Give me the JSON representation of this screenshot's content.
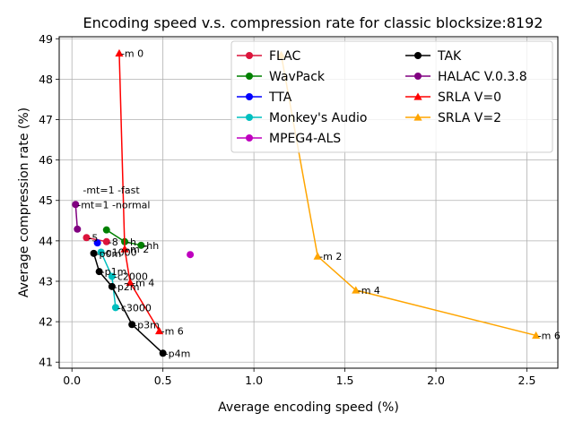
{
  "chart_data": {
    "type": "scatter",
    "title": "Encoding speed v.s. compression rate for classic blocksize:8192",
    "xlabel": "Average encoding speed (%)",
    "ylabel": "Average compression rate (%)",
    "xlim": [
      -0.07,
      2.67
    ],
    "ylim": [
      40.85,
      49.05
    ],
    "xticks": [
      0.0,
      0.5,
      1.0,
      1.5,
      2.0,
      2.5
    ],
    "xtick_labels": [
      "0.0",
      "0.5",
      "1.0",
      "1.5",
      "2.0",
      "2.5"
    ],
    "yticks": [
      41,
      42,
      43,
      44,
      45,
      46,
      47,
      48,
      49
    ],
    "ytick_labels": [
      "41",
      "42",
      "43",
      "44",
      "45",
      "46",
      "47",
      "48",
      "49"
    ],
    "grid": true,
    "legend_position": "top-right",
    "series": [
      {
        "name": "FLAC",
        "color": "#dc143c",
        "marker": "circle",
        "points": [
          {
            "x": 0.08,
            "y": 44.08,
            "label": "-5"
          },
          {
            "x": 0.19,
            "y": 43.98,
            "label": "-8"
          }
        ]
      },
      {
        "name": "WavPack",
        "color": "#008000",
        "marker": "circle",
        "points": [
          {
            "x": 0.19,
            "y": 44.27,
            "label": ""
          },
          {
            "x": 0.29,
            "y": 43.98,
            "label": "-h"
          },
          {
            "x": 0.38,
            "y": 43.89,
            "label": "-hh"
          }
        ]
      },
      {
        "name": "TTA",
        "color": "#0000ff",
        "marker": "circle",
        "points": [
          {
            "x": 0.14,
            "y": 43.95,
            "label": ""
          }
        ]
      },
      {
        "name": "Monkey's Audio",
        "color": "#00bfbf",
        "marker": "circle",
        "points": [
          {
            "x": 0.16,
            "y": 43.72,
            "label": "-c1000"
          },
          {
            "x": 0.22,
            "y": 43.12,
            "label": "-c2000"
          },
          {
            "x": 0.24,
            "y": 42.35,
            "label": "-c3000"
          }
        ]
      },
      {
        "name": "MPEG4-ALS",
        "color": "#bf00bf",
        "marker": "circle",
        "points": [
          {
            "x": 0.65,
            "y": 43.66,
            "label": ""
          }
        ]
      },
      {
        "name": "TAK",
        "color": "#000000",
        "marker": "circle",
        "points": [
          {
            "x": 0.12,
            "y": 43.69,
            "label": "-p0m"
          },
          {
            "x": 0.15,
            "y": 43.24,
            "label": "-p1m"
          },
          {
            "x": 0.22,
            "y": 42.87,
            "label": "-p2m"
          },
          {
            "x": 0.33,
            "y": 41.93,
            "label": "-p3m"
          },
          {
            "x": 0.5,
            "y": 41.22,
            "label": "-p4m"
          }
        ]
      },
      {
        "name": "HALAC V.0.3.8",
        "color": "#800080",
        "marker": "circle",
        "points": [
          {
            "x": 0.02,
            "y": 44.9,
            "label": "-mt=1 -normal"
          },
          {
            "x": 0.03,
            "y": 44.29,
            "label": ""
          }
        ]
      },
      {
        "name": "SRLA V=0",
        "color": "#ff0000",
        "marker": "triangle",
        "points": [
          {
            "x": 0.26,
            "y": 48.64,
            "label": "-m 0"
          },
          {
            "x": 0.29,
            "y": 43.8,
            "label": "-m 2"
          },
          {
            "x": 0.32,
            "y": 42.97,
            "label": "-m 4"
          },
          {
            "x": 0.48,
            "y": 41.77,
            "label": "-m 6"
          }
        ]
      },
      {
        "name": "SRLA V=2",
        "color": "#ffa500",
        "marker": "triangle",
        "points": [
          {
            "x": 1.15,
            "y": 48.6,
            "label": ""
          },
          {
            "x": 1.35,
            "y": 43.62,
            "label": "-m 2"
          },
          {
            "x": 1.56,
            "y": 42.78,
            "label": "-m 4"
          },
          {
            "x": 2.55,
            "y": 41.66,
            "label": "-m 6"
          }
        ]
      }
    ],
    "annotations": [
      {
        "text": "-mt=1 -fast",
        "x": 0.06,
        "y": 45.17
      }
    ]
  }
}
